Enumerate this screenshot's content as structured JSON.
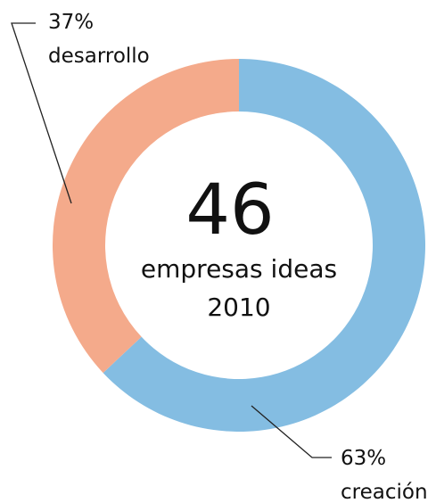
{
  "chart_data": {
    "type": "pie",
    "style": "donut",
    "categories": [
      "creación",
      "desarrollo"
    ],
    "values": [
      63,
      37
    ],
    "value_labels": [
      "63%",
      "37%"
    ],
    "colors": [
      "#84bde2",
      "#f4aa8b"
    ],
    "start_angle_deg": 0,
    "direction": "clockwise"
  },
  "center": {
    "value": "46",
    "line1": "empresas ideas",
    "line2": "2010"
  }
}
